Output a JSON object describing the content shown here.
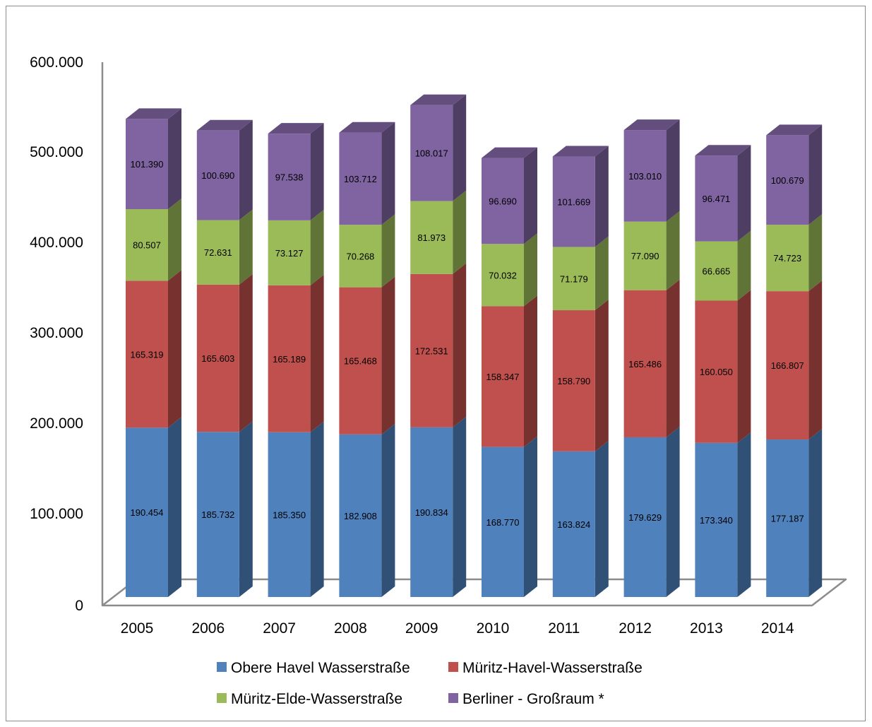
{
  "chart_data": {
    "type": "bar",
    "stacked": true,
    "three_d": true,
    "title": "",
    "xlabel": "",
    "ylabel": "",
    "categories": [
      "2005",
      "2006",
      "2007",
      "2008",
      "2009",
      "2010",
      "2011",
      "2012",
      "2013",
      "2014"
    ],
    "ylim": [
      0,
      600000
    ],
    "yticks": [
      0,
      100000,
      200000,
      300000,
      400000,
      500000,
      600000
    ],
    "ytick_labels": [
      "0",
      "100.000",
      "200.000",
      "300.000",
      "400.000",
      "500.000",
      "600.000"
    ],
    "grid": false,
    "legend_position": "bottom",
    "series": [
      {
        "name": "Obere Havel Wasserstraße",
        "color": "#4f81bd",
        "values": [
          190454,
          185732,
          185350,
          182908,
          190834,
          168770,
          163824,
          179629,
          173340,
          177187
        ],
        "labels": [
          "190.454",
          "185.732",
          "185.350",
          "182.908",
          "190.834",
          "168.770",
          "163.824",
          "179.629",
          "173.340",
          "177.187"
        ]
      },
      {
        "name": "Müritz-Havel-Wasserstraße",
        "color": "#c0504d",
        "values": [
          165319,
          165603,
          165189,
          165468,
          172531,
          158347,
          158790,
          165486,
          160050,
          166807
        ],
        "labels": [
          "165.319",
          "165.603",
          "165.189",
          "165.468",
          "172.531",
          "158.347",
          "158.790",
          "165.486",
          "160.050",
          "166.807"
        ]
      },
      {
        "name": "Müritz-Elde-Wasserstraße",
        "color": "#9bbb59",
        "values": [
          80507,
          72631,
          73127,
          70268,
          81973,
          70032,
          71179,
          77090,
          66665,
          74723
        ],
        "labels": [
          "80.507",
          "72.631",
          "73.127",
          "70.268",
          "81.973",
          "70.032",
          "71.179",
          "77.090",
          "66.665",
          "74.723"
        ]
      },
      {
        "name": "Berliner - Großraum *",
        "color": "#8064a2",
        "values": [
          101390,
          100690,
          97538,
          103712,
          108017,
          96690,
          101669,
          103010,
          96471,
          100679
        ],
        "labels": [
          "101.390",
          "100.690",
          "97.538",
          "103.712",
          "108.017",
          "96.690",
          "101.669",
          "103.010",
          "96.471",
          "100.679"
        ]
      }
    ]
  }
}
